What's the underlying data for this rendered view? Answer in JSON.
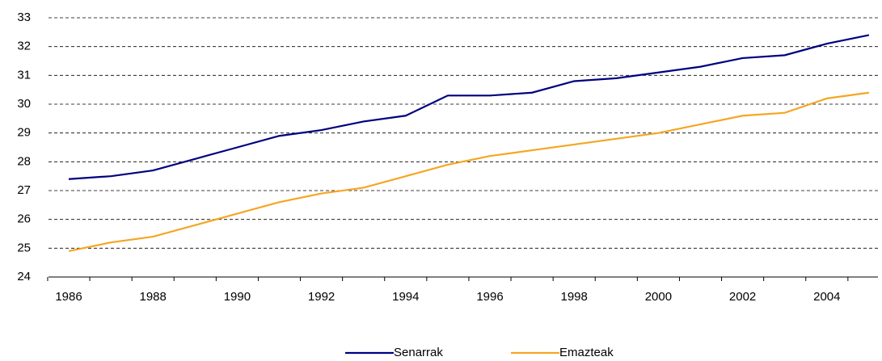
{
  "chart_data": {
    "type": "line",
    "categories": [
      "1986",
      null,
      "1988",
      null,
      "1990",
      null,
      "1992",
      null,
      "1994",
      null,
      "1996",
      null,
      "1998",
      null,
      "2000",
      null,
      "2002",
      null,
      "2004",
      null
    ],
    "series": [
      {
        "name": "Senarrak",
        "color": "#000080",
        "values": [
          27.4,
          27.5,
          27.7,
          28.1,
          28.5,
          28.9,
          29.1,
          29.4,
          29.6,
          30.3,
          30.3,
          30.4,
          30.8,
          30.9,
          31.1,
          31.3,
          31.6,
          31.7,
          32.1,
          32.4
        ]
      },
      {
        "name": "Emazteak",
        "color": "#f5a623",
        "values": [
          24.9,
          25.2,
          25.4,
          25.8,
          26.2,
          26.6,
          26.9,
          27.1,
          27.5,
          27.9,
          28.2,
          28.4,
          28.6,
          28.8,
          29.0,
          29.3,
          29.6,
          29.7,
          30.2,
          30.4
        ]
      }
    ],
    "ylim": [
      24,
      33
    ],
    "yticks": [
      24,
      25,
      26,
      27,
      28,
      29,
      30,
      31,
      32,
      33
    ],
    "grid": true,
    "legend": "bottom"
  }
}
